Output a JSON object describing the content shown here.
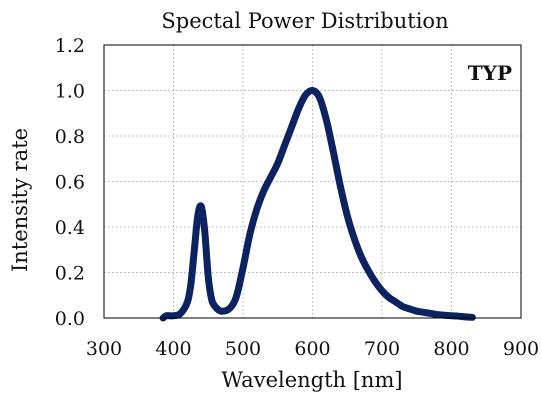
{
  "chart_data": {
    "type": "line",
    "title": "Spectal Power Distribution",
    "xlabel": "Wavelength [nm]",
    "ylabel": "Intensity rate",
    "annotation": "TYP",
    "xlim": [
      300,
      900
    ],
    "ylim": [
      0,
      1.2
    ],
    "xticks": [
      "300",
      "400",
      "500",
      "600",
      "700",
      "800",
      "900"
    ],
    "yticks": [
      "0.0",
      "0.2",
      "0.4",
      "0.6",
      "0.8",
      "1.0",
      "1.2"
    ],
    "grid": "dotted",
    "legend": "none",
    "series": [
      {
        "color": "#0d2260",
        "x": [
          385,
          390,
          400,
          410,
          420,
          425,
          430,
          435,
          440,
          445,
          450,
          455,
          460,
          465,
          470,
          480,
          490,
          500,
          510,
          520,
          530,
          540,
          550,
          560,
          570,
          580,
          590,
          600,
          610,
          620,
          630,
          640,
          650,
          660,
          670,
          680,
          690,
          700,
          710,
          720,
          730,
          740,
          750,
          760,
          770,
          780,
          790,
          800,
          810,
          820,
          830
        ],
        "y": [
          0.0,
          0.01,
          0.01,
          0.02,
          0.07,
          0.15,
          0.3,
          0.45,
          0.49,
          0.38,
          0.18,
          0.08,
          0.05,
          0.035,
          0.03,
          0.04,
          0.09,
          0.22,
          0.37,
          0.48,
          0.56,
          0.62,
          0.68,
          0.76,
          0.84,
          0.92,
          0.98,
          1.0,
          0.97,
          0.87,
          0.73,
          0.58,
          0.45,
          0.35,
          0.27,
          0.21,
          0.16,
          0.12,
          0.09,
          0.07,
          0.05,
          0.04,
          0.03,
          0.025,
          0.02,
          0.015,
          0.012,
          0.01,
          0.008,
          0.005,
          0.003
        ]
      }
    ]
  }
}
